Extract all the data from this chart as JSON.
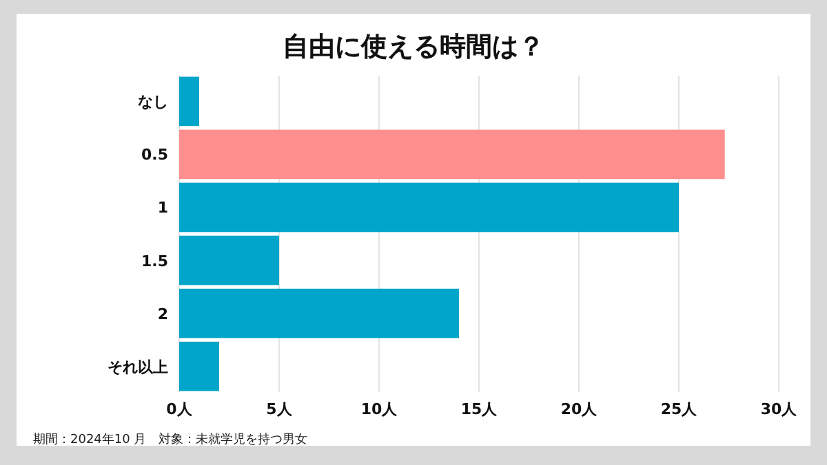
{
  "chart_data": {
    "type": "bar",
    "orientation": "horizontal",
    "title": "自由に使える時間は？",
    "categories": [
      "なし",
      "0.5",
      "1",
      "1.5",
      "2",
      "それ以上"
    ],
    "values": [
      1,
      27.3,
      25,
      5,
      14,
      2
    ],
    "colors": [
      "#00a5c9",
      "#ff8f8f",
      "#00a5c9",
      "#00a5c9",
      "#00a5c9",
      "#00a5c9"
    ],
    "xlim": [
      0,
      30
    ],
    "xticks": [
      {
        "value": 0,
        "label": "0人"
      },
      {
        "value": 5,
        "label": "5人"
      },
      {
        "value": 10,
        "label": "10人"
      },
      {
        "value": 15,
        "label": "15人"
      },
      {
        "value": 20,
        "label": "20人"
      },
      {
        "value": 25,
        "label": "25人"
      },
      {
        "value": 30,
        "label": "30人"
      }
    ],
    "grid": "x",
    "annotations": [
      "期間：2024年10 月　対象：未就学児を持つ男女"
    ]
  }
}
